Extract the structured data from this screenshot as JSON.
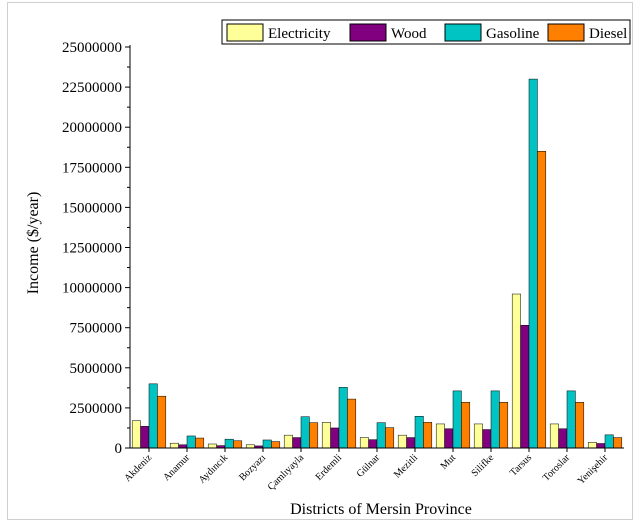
{
  "chart_data": {
    "type": "bar",
    "xlabel": "Districts of Mersin Province",
    "ylabel": "Income ($/year)",
    "ylim": [
      0,
      25000000
    ],
    "yticks": [
      0,
      2500000,
      5000000,
      7500000,
      10000000,
      12500000,
      15000000,
      17500000,
      20000000,
      22500000,
      25000000
    ],
    "ytick_labels": [
      "0",
      "2500000",
      "5000000",
      "7500000",
      "10000000",
      "12500000",
      "15000000",
      "17500000",
      "20000000",
      "22500000",
      "25000000"
    ],
    "legend_position": "top-right",
    "grid": false,
    "categories": [
      "Akdeniz",
      "Anamur",
      "Aydıncık",
      "Bozyazı",
      "Çamlıyayla",
      "Erdemli",
      "Gülnar",
      "Mezitli",
      "Mut",
      "Silifke",
      "Tarsus",
      "Toroslar",
      "Yenişehir"
    ],
    "series": [
      {
        "name": "Electricity",
        "color": "#ffff99",
        "values": [
          1700000,
          300000,
          250000,
          200000,
          800000,
          1600000,
          650000,
          800000,
          1500000,
          1500000,
          9600000,
          1500000,
          350000
        ]
      },
      {
        "name": "Wood",
        "color": "#800080",
        "values": [
          1350000,
          200000,
          150000,
          130000,
          650000,
          1250000,
          520000,
          650000,
          1200000,
          1150000,
          7650000,
          1200000,
          280000
        ]
      },
      {
        "name": "Gasoline",
        "color": "#00c4c4",
        "values": [
          4000000,
          750000,
          550000,
          500000,
          1950000,
          3780000,
          1580000,
          1980000,
          3560000,
          3560000,
          23000000,
          3560000,
          820000
        ]
      },
      {
        "name": "Diesel",
        "color": "#ff8000",
        "values": [
          3230000,
          620000,
          450000,
          400000,
          1580000,
          3050000,
          1270000,
          1600000,
          2850000,
          2850000,
          18500000,
          2850000,
          650000
        ]
      }
    ]
  }
}
